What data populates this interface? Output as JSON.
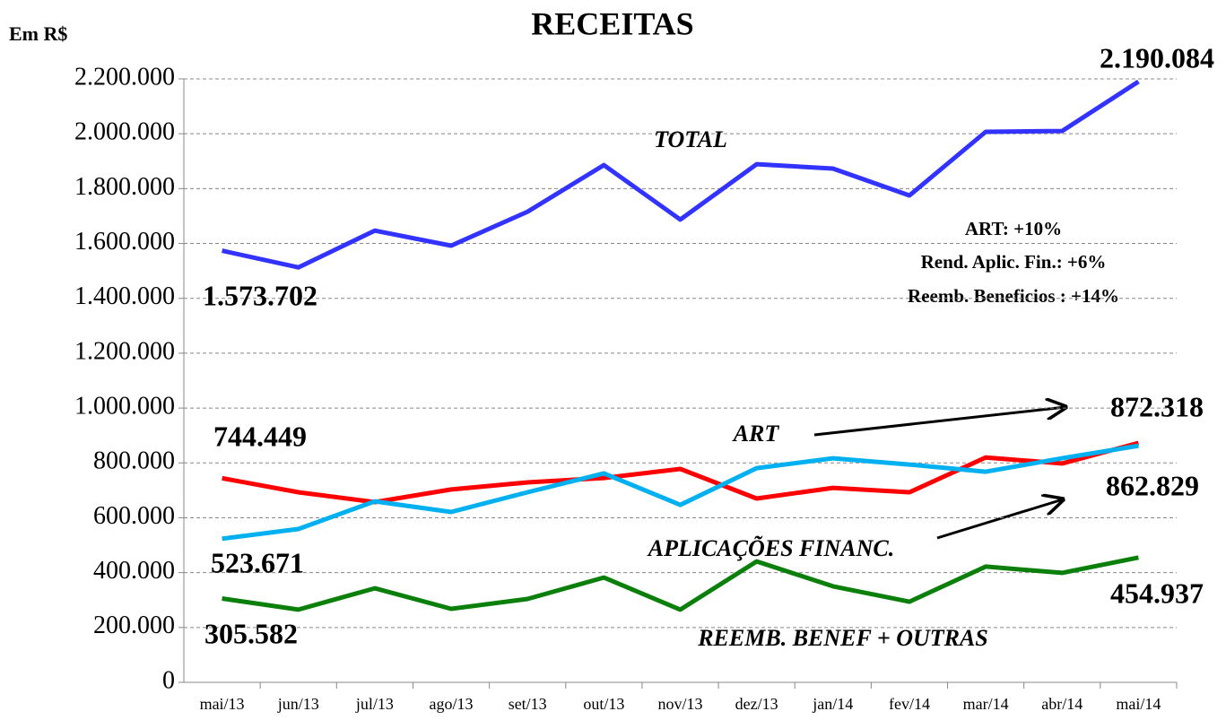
{
  "chart_data": {
    "type": "line",
    "title": "RECEITAS",
    "y_axis_label": "Em R$",
    "categories": [
      "mai/13",
      "jun/13",
      "jul/13",
      "ago/13",
      "set/13",
      "out/13",
      "nov/13",
      "dez/13",
      "jan/14",
      "fev/14",
      "mar/14",
      "abr/14",
      "mai/14"
    ],
    "series": [
      {
        "name": "TOTAL",
        "color": "#3333ff",
        "values": [
          1573702,
          1513000,
          1647000,
          1592000,
          1716000,
          1886000,
          1687000,
          1889000,
          1873000,
          1775000,
          2007000,
          2010000,
          2190084
        ],
        "value_labels": [
          "1.573.702",
          null,
          null,
          null,
          null,
          null,
          null,
          null,
          null,
          null,
          null,
          null,
          "2.190.084"
        ]
      },
      {
        "name": "ART",
        "color": "#ff0000",
        "values": [
          744449,
          693000,
          657000,
          703000,
          729000,
          745000,
          778000,
          670000,
          709000,
          693000,
          820000,
          798000,
          872318
        ],
        "value_labels": [
          "744.449",
          null,
          null,
          null,
          null,
          null,
          null,
          null,
          null,
          null,
          null,
          null,
          "872.318"
        ]
      },
      {
        "name": "APLICAÇÕES FINANC.",
        "color": "#00b0f0",
        "values": [
          523671,
          559000,
          660000,
          621000,
          693000,
          762000,
          647000,
          781000,
          817000,
          794000,
          768000,
          817000,
          862829
        ],
        "value_labels": [
          "523.671",
          null,
          null,
          null,
          null,
          null,
          null,
          null,
          null,
          null,
          null,
          null,
          "862.829"
        ]
      },
      {
        "name": "REEMB. BENEF + OUTRAS",
        "color": "#0a800a",
        "values": [
          305582,
          265000,
          343000,
          268000,
          304000,
          382000,
          265000,
          441000,
          350000,
          294000,
          422000,
          399000,
          454937
        ],
        "value_labels": [
          "305.582",
          null,
          null,
          null,
          null,
          null,
          null,
          null,
          null,
          null,
          null,
          null,
          "454.937"
        ]
      }
    ],
    "ylim": [
      0,
      2200000
    ],
    "yticks": [
      0,
      {
        "value": 200000,
        "label": "200.000"
      },
      {
        "value": 400000,
        "label": "400.000"
      },
      {
        "value": 600000,
        "label": "600.000"
      },
      {
        "value": 800000,
        "label": "800.000"
      },
      {
        "value": 1000000,
        "label": "1.000.000"
      },
      {
        "value": 1200000,
        "label": "1.200.000"
      },
      {
        "value": 1400000,
        "label": "1.400.000"
      },
      {
        "value": 1600000,
        "label": "1.600.000"
      },
      {
        "value": 1800000,
        "label": "1.800.000"
      },
      {
        "value": 2000000,
        "label": "2.000.000"
      },
      {
        "value": 2200000,
        "label": "2.200.000"
      }
    ],
    "grid": true,
    "annotations": [
      "ART: +10%",
      "Rend. Aplic. Fin.: +6%",
      "Reemb. Beneficios : +14%"
    ]
  }
}
